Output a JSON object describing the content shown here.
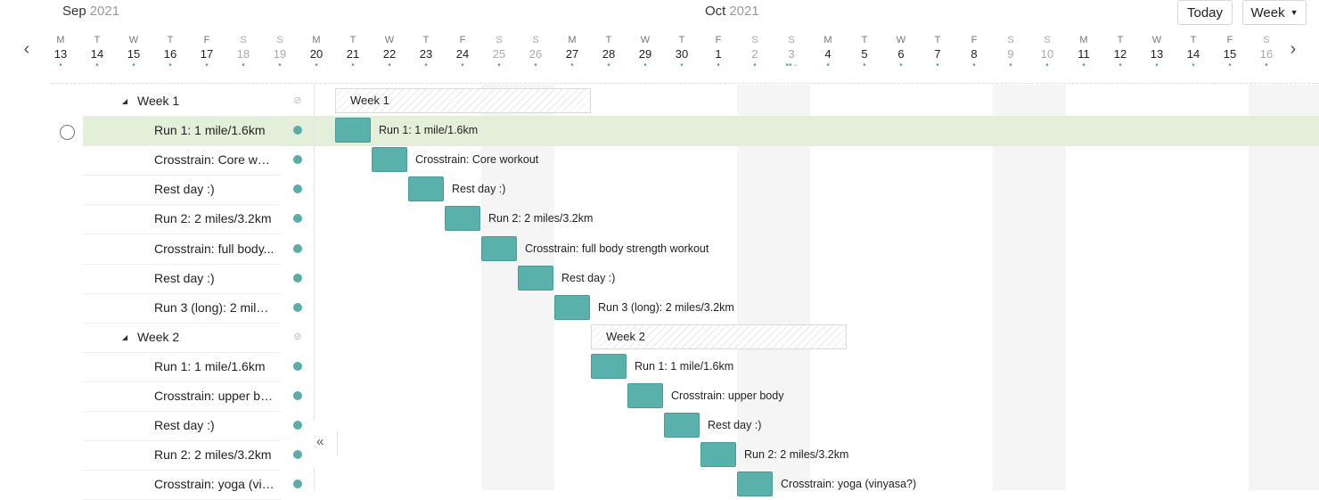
{
  "header": {
    "months": [
      {
        "name": "Sep",
        "year": "2021"
      },
      {
        "name": "Oct",
        "year": "2021"
      }
    ],
    "today_label": "Today",
    "view_label": "Week",
    "days": [
      {
        "l": "M",
        "n": "13",
        "dot": "•"
      },
      {
        "l": "T",
        "n": "14",
        "dot": "•"
      },
      {
        "l": "W",
        "n": "15",
        "dot": "•"
      },
      {
        "l": "T",
        "n": "16",
        "dot": "•"
      },
      {
        "l": "F",
        "n": "17",
        "dot": "•"
      },
      {
        "l": "S",
        "n": "18",
        "dot": "•"
      },
      {
        "l": "S",
        "n": "19",
        "dot": "•"
      },
      {
        "l": "M",
        "n": "20",
        "dot": "•"
      },
      {
        "l": "T",
        "n": "21",
        "dot": "•"
      },
      {
        "l": "W",
        "n": "22",
        "dot": "•"
      },
      {
        "l": "T",
        "n": "23",
        "dot": "•"
      },
      {
        "l": "F",
        "n": "24",
        "dot": "•"
      },
      {
        "l": "S",
        "n": "25",
        "dot": "•"
      },
      {
        "l": "S",
        "n": "26",
        "dot": "•"
      },
      {
        "l": "M",
        "n": "27",
        "dot": "•"
      },
      {
        "l": "T",
        "n": "28",
        "dot": "•"
      },
      {
        "l": "W",
        "n": "29",
        "dot": "•"
      },
      {
        "l": "T",
        "n": "30",
        "dot": "•"
      },
      {
        "l": "F",
        "n": "1",
        "dot": "•"
      },
      {
        "l": "S",
        "n": "2",
        "dot": "•"
      },
      {
        "l": "S",
        "n": "3",
        "dot": "•• -"
      },
      {
        "l": "M",
        "n": "4",
        "dot": "•"
      },
      {
        "l": "T",
        "n": "5",
        "dot": "•"
      },
      {
        "l": "W",
        "n": "6",
        "dot": "•"
      },
      {
        "l": "T",
        "n": "7",
        "dot": "•"
      },
      {
        "l": "F",
        "n": "8",
        "dot": "•"
      },
      {
        "l": "S",
        "n": "9",
        "dot": "•"
      },
      {
        "l": "S",
        "n": "10",
        "dot": "•"
      },
      {
        "l": "M",
        "n": "11",
        "dot": "•"
      },
      {
        "l": "T",
        "n": "12",
        "dot": "•"
      },
      {
        "l": "W",
        "n": "13",
        "dot": "•"
      },
      {
        "l": "T",
        "n": "14",
        "dot": "•"
      },
      {
        "l": "F",
        "n": "15",
        "dot": "•"
      },
      {
        "l": "S",
        "n": "16",
        "dot": "•"
      }
    ]
  },
  "rows": [
    {
      "type": "group",
      "label": "Week 1",
      "bar_label": "Week 1",
      "start": 8,
      "span": 7
    },
    {
      "type": "task",
      "label": "Run 1: 1 mile/1.6km",
      "bar_label": "Run 1: 1 mile/1.6km",
      "start": 8,
      "selected": true
    },
    {
      "type": "task",
      "label": "Crosstrain: Core wo...",
      "bar_label": "Crosstrain: Core workout",
      "start": 9
    },
    {
      "type": "task",
      "label": "Rest day :)",
      "bar_label": "Rest day :)",
      "start": 10
    },
    {
      "type": "task",
      "label": "Run 2: 2 miles/3.2km",
      "bar_label": "Run 2: 2 miles/3.2km",
      "start": 11
    },
    {
      "type": "task",
      "label": "Crosstrain: full body...",
      "bar_label": "Crosstrain: full body strength workout",
      "start": 12
    },
    {
      "type": "task",
      "label": "Rest day :)",
      "bar_label": "Rest day :)",
      "start": 13
    },
    {
      "type": "task",
      "label": "Run 3 (long): 2 miles...",
      "bar_label": "Run 3 (long): 2 miles/3.2km",
      "start": 14
    },
    {
      "type": "group",
      "label": "Week 2",
      "bar_label": "Week 2",
      "start": 15,
      "span": 7
    },
    {
      "type": "task",
      "label": "Run 1: 1 mile/1.6km",
      "bar_label": "Run 1: 1 mile/1.6km",
      "start": 15
    },
    {
      "type": "task",
      "label": "Crosstrain: upper bo...",
      "bar_label": "Crosstrain: upper body",
      "start": 16
    },
    {
      "type": "task",
      "label": "Rest day :)",
      "bar_label": "Rest day :)",
      "start": 17
    },
    {
      "type": "task",
      "label": "Run 2: 2 miles/3.2km",
      "bar_label": "Run 2: 2 miles/3.2km",
      "start": 18
    },
    {
      "type": "task",
      "label": "Crosstrain: yoga (vin...",
      "bar_label": "Crosstrain: yoga (vinyasa?)",
      "start": 19
    }
  ],
  "colors": {
    "accent": "#5ab0ab",
    "selected_row": "#e3efd8",
    "weekend_band": "#f5f5f5"
  }
}
